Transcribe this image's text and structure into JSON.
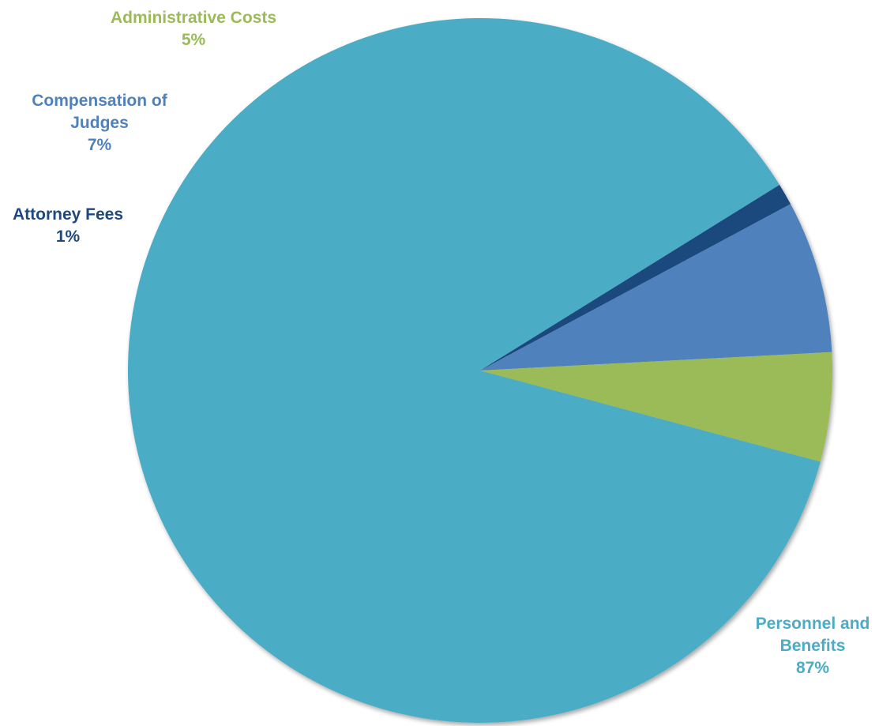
{
  "chart_data": {
    "type": "pie",
    "title": "",
    "series": [
      {
        "name": "",
        "values": [
          {
            "category": "Personnel and Benefits",
            "value": 87,
            "label_lines": [
              "Personnel and",
              "Benefits"
            ],
            "percent_label": "87%",
            "color": "#4BACC6"
          },
          {
            "category": "Attorney Fees",
            "value": 1,
            "label_lines": [
              "Attorney Fees"
            ],
            "percent_label": "1%",
            "color": "#1F497D"
          },
          {
            "category": "Compensation of Judges",
            "value": 7,
            "label_lines": [
              "Compensation of",
              "Judges"
            ],
            "percent_label": "7%",
            "color": "#4F81BD"
          },
          {
            "category": "Administrative Costs",
            "value": 5,
            "label_lines": [
              "Administrative Costs"
            ],
            "percent_label": "5%",
            "color": "#9BBB59"
          }
        ]
      }
    ],
    "legend": "none",
    "data_labels": "outside, category name and percentage"
  }
}
